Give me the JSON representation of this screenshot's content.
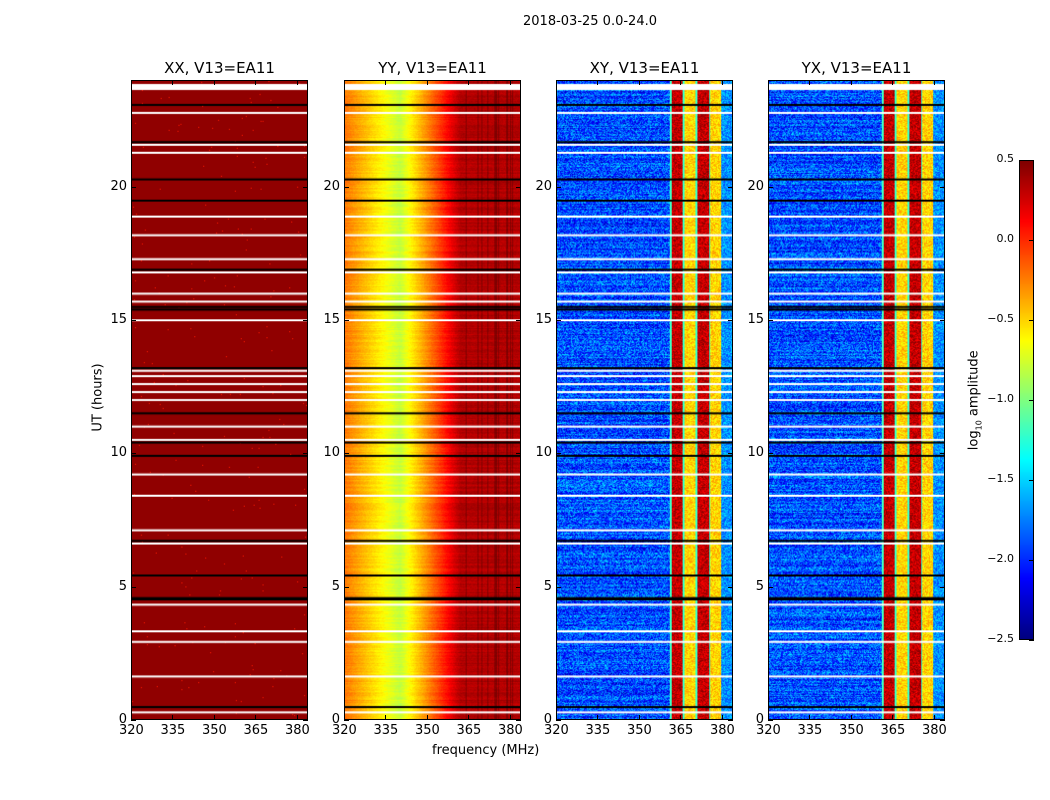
{
  "chart_data": {
    "type": "heatmap",
    "title": "2018-03-25 0.0-24.0",
    "xlabel": "frequency (MHz)",
    "ylabel": "UT (hours)",
    "xlim": [
      320,
      384
    ],
    "ylim": [
      0,
      24
    ],
    "xticks": [
      "320",
      "335",
      "350",
      "365",
      "380"
    ],
    "xtick_values": [
      320,
      335,
      350,
      365,
      380
    ],
    "yticks": [
      "0",
      "5",
      "10",
      "15",
      "20"
    ],
    "ytick_values": [
      0,
      5,
      10,
      15,
      20
    ],
    "panels": [
      {
        "title": "XX, V13=EA11",
        "model": "flat",
        "level": 0.45
      },
      {
        "title": "YY, V13=EA11",
        "model": "gradient",
        "low_at_mhz": 340,
        "low_level": -0.8,
        "high_level": 0.35
      },
      {
        "title": "XY, V13=EA11",
        "model": "cross",
        "base_level": -1.9,
        "band_mhz": [
          361,
          380
        ],
        "band_level": 0.1
      },
      {
        "title": "YX, V13=EA11",
        "model": "cross",
        "base_level": -1.9,
        "band_mhz": [
          361,
          380
        ],
        "band_level": 0.1
      }
    ],
    "flagged_white_hours": [
      0.25,
      1.6,
      2.9,
      3.3,
      4.3,
      6.6,
      7.1,
      8.4,
      9.2,
      10.5,
      11.0,
      12.0,
      12.3,
      12.6,
      12.9,
      13.1,
      15.0,
      15.7,
      16.0,
      16.8,
      17.3,
      18.2,
      18.9,
      19.5,
      21.3,
      21.6,
      22.8,
      23.7
    ],
    "flagged_black_hours": [
      0.45,
      4.5,
      4.55,
      5.4,
      6.7,
      9.9,
      10.4,
      11.5,
      13.2,
      15.4,
      15.5,
      16.9,
      19.5,
      20.3,
      21.7,
      23.1
    ],
    "colorbar": {
      "label_main": "log",
      "label_sub": "10",
      "label_rest": " amplitude",
      "colormap": "jet",
      "min": -2.5,
      "max": 0.5,
      "tick_values": [
        0.5,
        0.0,
        -0.5,
        -1.0,
        -1.5,
        -2.0,
        -2.5
      ],
      "ticks": [
        "0.5",
        "0.0",
        "−0.5",
        "−1.0",
        "−1.5",
        "−2.0",
        "−2.5"
      ]
    }
  }
}
